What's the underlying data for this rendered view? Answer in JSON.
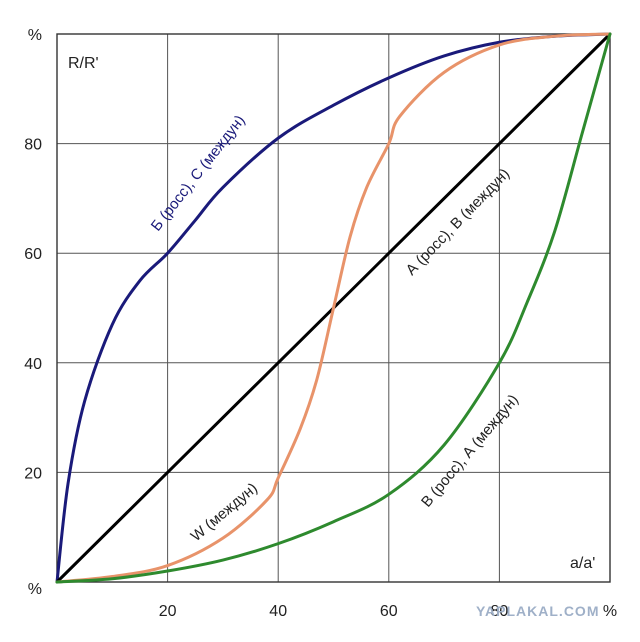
{
  "chart_data": {
    "type": "line",
    "ylabel": "R/R'",
    "xlabel": "a/a'",
    "xlim": [
      0,
      100
    ],
    "ylim": [
      0,
      100
    ],
    "grid": true,
    "x_ticks": [
      {
        "value": 0,
        "label": "%"
      },
      {
        "value": 20,
        "label": "20"
      },
      {
        "value": 40,
        "label": "40"
      },
      {
        "value": 60,
        "label": "60"
      },
      {
        "value": 80,
        "label": "80"
      },
      {
        "value": 100,
        "label": "%"
      }
    ],
    "y_ticks": [
      {
        "value": 0,
        "label": "%"
      },
      {
        "value": 20,
        "label": "20"
      },
      {
        "value": 40,
        "label": "40"
      },
      {
        "value": 60,
        "label": "60"
      },
      {
        "value": 80,
        "label": "80"
      },
      {
        "value": 100,
        "label": "%"
      }
    ],
    "series": [
      {
        "name": "Б (росс), С (междун)",
        "color": "#1a1a7a",
        "x": [
          0,
          2,
          5,
          10,
          15,
          20,
          25,
          30,
          40,
          50,
          60,
          70,
          80,
          90,
          100
        ],
        "y": [
          0,
          18,
          33,
          47,
          55,
          60,
          66,
          72,
          81,
          87,
          92,
          96,
          98.5,
          99.6,
          100
        ]
      },
      {
        "name": "А (росс), В (междун)",
        "color": "#000000",
        "x": [
          0,
          100
        ],
        "y": [
          0,
          100
        ]
      },
      {
        "name": "W (междун)",
        "color": "#e8936a",
        "x": [
          0,
          10,
          20,
          30,
          38,
          40,
          44,
          47,
          50,
          53,
          56,
          60,
          62,
          70,
          80,
          90,
          100
        ],
        "y": [
          0,
          1,
          3,
          8,
          15,
          19,
          28,
          37,
          50,
          63,
          72,
          80,
          85,
          93,
          98,
          99.6,
          100
        ]
      },
      {
        "name": "В (росс), А (междун)",
        "color": "#2e8a2e",
        "x": [
          0,
          10,
          20,
          30,
          40,
          50,
          60,
          70,
          80,
          85,
          90,
          95,
          100
        ],
        "y": [
          0,
          0.6,
          2,
          4,
          7,
          11,
          16,
          25,
          40,
          51,
          64,
          82,
          100
        ]
      }
    ]
  },
  "watermark": "YAPLAKAL.COM"
}
